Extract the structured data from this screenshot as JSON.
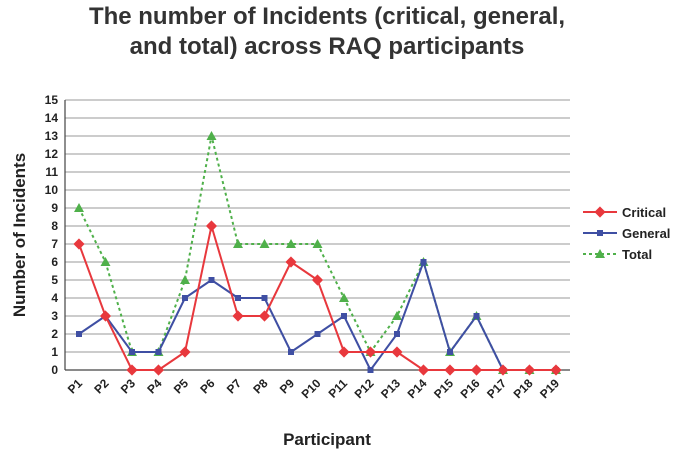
{
  "chart_data": {
    "type": "line",
    "title_lines": [
      "The number of Incidents (critical, general,",
      "and total) across RAQ participants"
    ],
    "xlabel": "Participant",
    "ylabel": "Number of Incidents",
    "categories": [
      "P1",
      "P2",
      "P3",
      "P4",
      "P5",
      "P6",
      "P7",
      "P8",
      "P9",
      "P10",
      "P11",
      "P12",
      "P13",
      "P14",
      "P15",
      "P16",
      "P17",
      "P18",
      "P19"
    ],
    "ylim": [
      0,
      15
    ],
    "yticks": [
      "0",
      "1",
      "2",
      "3",
      "4",
      "5",
      "6",
      "7",
      "8",
      "9",
      "10",
      "11",
      "12",
      "13",
      "14",
      "15"
    ],
    "grid": true,
    "legend_position": "right",
    "series": [
      {
        "name": "Critical",
        "color": "#e8383d",
        "marker": "diamond",
        "line": "solid",
        "values": [
          7,
          3,
          0,
          0,
          1,
          8,
          3,
          3,
          6,
          5,
          1,
          1,
          1,
          0,
          0,
          0,
          0,
          0,
          0
        ]
      },
      {
        "name": "General",
        "color": "#3f4fa3",
        "marker": "square",
        "line": "solid",
        "values": [
          2,
          3,
          1,
          1,
          4,
          5,
          4,
          4,
          1,
          2,
          3,
          0,
          2,
          6,
          1,
          3,
          0,
          0,
          0
        ]
      },
      {
        "name": "Total",
        "color": "#4fb04a",
        "marker": "triangle",
        "line": "dotted",
        "values": [
          9,
          6,
          1,
          1,
          5,
          13,
          7,
          7,
          7,
          7,
          4,
          1,
          3,
          6,
          1,
          3,
          0,
          0,
          0
        ]
      }
    ]
  }
}
